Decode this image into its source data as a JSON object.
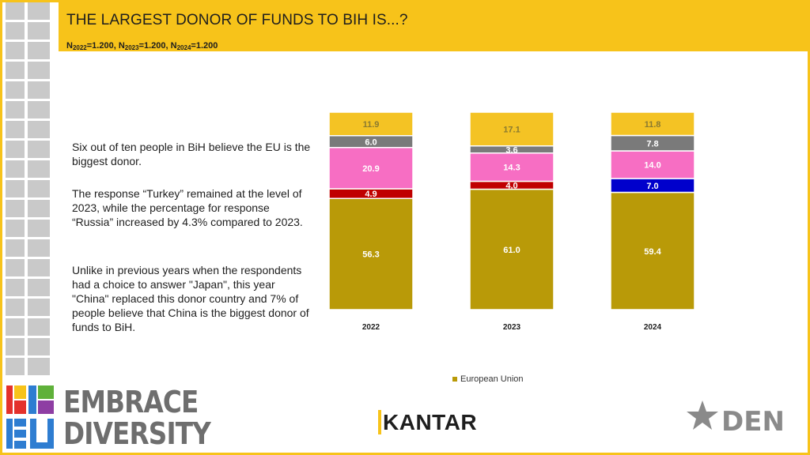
{
  "header": {
    "title": "THE LARGEST DONOR OF FUNDS TO BIH IS...?",
    "sample": [
      {
        "label": "N",
        "sub": "2022",
        "value": "=1.200, "
      },
      {
        "label": "N",
        "sub": "2023",
        "value": "=1.200, "
      },
      {
        "label": "N",
        "sub": "2024",
        "value": "=1.200"
      }
    ]
  },
  "body_text": {
    "p1": "Six out of ten people in BiH believe the EU is the biggest donor.",
    "p2": "The response “Turkey” remained at the level of 2023, while the percentage for response “Russia” increased by 4.3% compared to 2023.",
    "p3": "Unlike in previous years when the respondents had a choice to answer \"Japan\", this year \"China\" replaced this donor country and 7% of people believe that China is the biggest donor of funds to BiH."
  },
  "chart_data": {
    "type": "bar",
    "stacked": true,
    "categories": [
      "2022",
      "2023",
      "2024"
    ],
    "series": [
      {
        "name": "European Union",
        "color": "#b99a08",
        "values": [
          56.3,
          61.0,
          59.4
        ],
        "labels": [
          "56.3",
          "61.0",
          "59.4"
        ],
        "label_color": "#ffffff"
      },
      {
        "color": "#c00000",
        "values": [
          4.9,
          4.0,
          0
        ],
        "labels": [
          "4.9",
          "4.0",
          ""
        ],
        "label_color": "#ffffff"
      },
      {
        "color": "#0000cc",
        "values": [
          0,
          0,
          7.0
        ],
        "labels": [
          "",
          "",
          "7.0"
        ],
        "label_color": "#ffffff"
      },
      {
        "color": "#f76ec3",
        "values": [
          20.9,
          14.3,
          14.0
        ],
        "labels": [
          "20.9",
          "14.3",
          "14.0"
        ],
        "label_color": "#ffffff"
      },
      {
        "color": "#7a7a7a",
        "values": [
          6.0,
          3.6,
          7.8
        ],
        "labels": [
          "6.0",
          "3.6",
          "7.8"
        ],
        "label_color": "#ffffff"
      },
      {
        "color": "#f4c324",
        "values": [
          11.9,
          17.1,
          11.8
        ],
        "labels": [
          "11.9",
          "17.1",
          "11.8"
        ],
        "label_color": "#8a7a30"
      }
    ],
    "ylim": [
      0,
      100
    ],
    "grid": false,
    "legend": "bottom",
    "legend_entries": [
      "European Union"
    ]
  },
  "logos": {
    "embrace_line1": "EMBRACE",
    "embrace_line2": "DIVERSITY",
    "kantar_k": "K",
    "kantar_rest": "ANTAR",
    "den_text": "DEN"
  }
}
